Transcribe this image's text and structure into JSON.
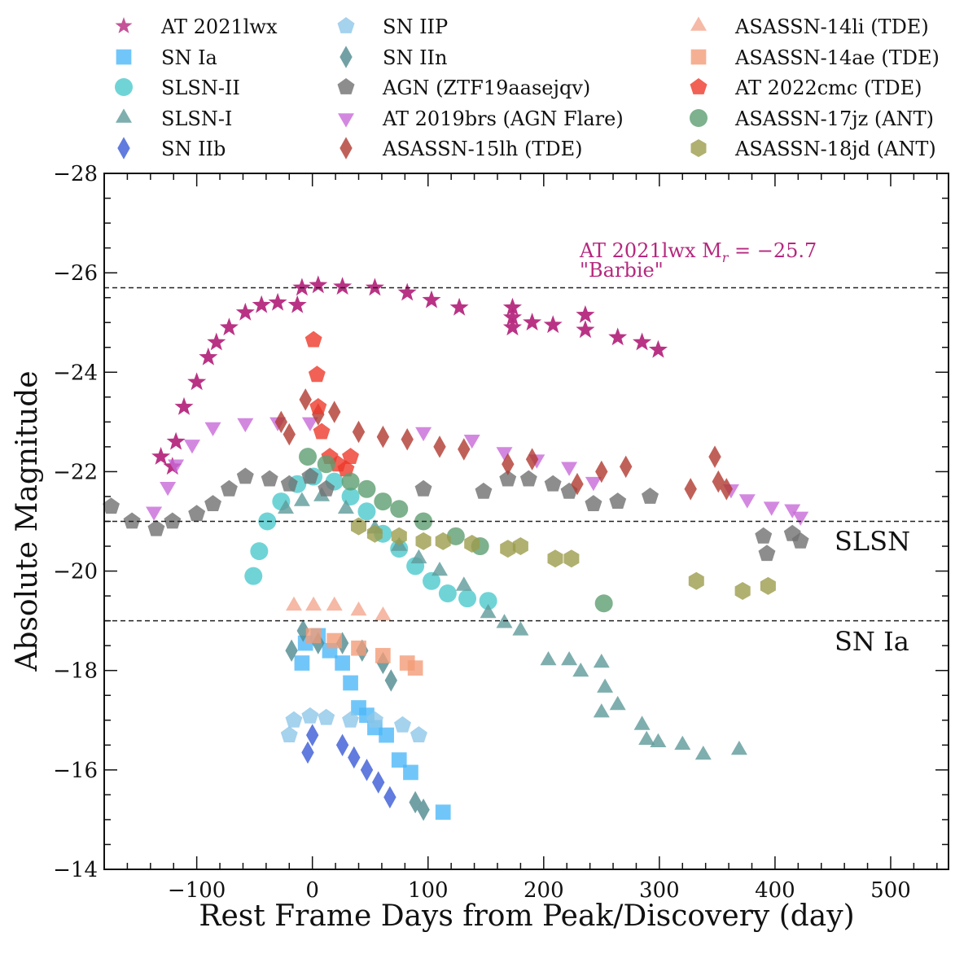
{
  "chart_data": {
    "type": "scatter",
    "title": "",
    "xlabel": "Rest Frame Days from Peak/Discovery (day)",
    "ylabel": "Absolute Magnitude",
    "xlim": [
      -180,
      550
    ],
    "ylim": [
      -28,
      -14
    ],
    "y_inverted": true,
    "x_ticks": [
      -100,
      0,
      100,
      200,
      300,
      400,
      500
    ],
    "x_tick_labels": [
      "−100",
      "0",
      "100",
      "200",
      "300",
      "400",
      "500"
    ],
    "y_ticks": [
      -28,
      -26,
      -24,
      -22,
      -20,
      -18,
      -16,
      -14
    ],
    "y_tick_labels": [
      "−28",
      "−26",
      "−24",
      "−22",
      "−20",
      "−18",
      "−16",
      "−14"
    ],
    "grid": false,
    "legend_placement": "top-outside",
    "reference_lines": [
      {
        "y": -25.7,
        "label": ""
      },
      {
        "y": -21,
        "label": "SLSN"
      },
      {
        "y": -19,
        "label": "SN Ia"
      }
    ],
    "annotation": {
      "line1": "AT 2021lwx M",
      "sub": "r",
      "line1b": " = −25.7",
      "line2": "\"Barbie\"",
      "color": "#b5287e"
    },
    "series": [
      {
        "name": "AT 2021lwx",
        "marker": "star",
        "color": "#b5287e",
        "x": [
          -131,
          -121,
          -118,
          -111,
          -100,
          -90,
          -83,
          -72,
          -58,
          -44,
          -30,
          -13,
          -9,
          5,
          26,
          54,
          82,
          103,
          127,
          173,
          173,
          173,
          190,
          208,
          236,
          236,
          264,
          285,
          299
        ],
        "y": [
          -22.3,
          -22.1,
          -22.6,
          -23.3,
          -23.8,
          -24.3,
          -24.6,
          -24.9,
          -25.2,
          -25.35,
          -25.4,
          -25.35,
          -25.7,
          -25.75,
          -25.72,
          -25.7,
          -25.6,
          -25.45,
          -25.3,
          -25.3,
          -25.1,
          -24.9,
          -25.0,
          -24.95,
          -24.85,
          -25.15,
          -24.7,
          -24.6,
          -24.45
        ]
      },
      {
        "name": "SN Ia",
        "marker": "square",
        "color": "#4db8f8",
        "x": [
          -9,
          -6,
          5,
          15,
          26,
          33,
          40,
          47,
          54,
          64,
          75,
          85,
          113
        ],
        "y": [
          -18.15,
          -18.55,
          -18.7,
          -18.4,
          -18.15,
          -17.75,
          -17.25,
          -17.1,
          -16.85,
          -16.7,
          -16.2,
          -15.95,
          -15.15
        ]
      },
      {
        "name": "SLSN-II",
        "marker": "circle",
        "color": "#4cc9cc",
        "x": [
          -51,
          -46,
          -39,
          -27,
          -13,
          1,
          19,
          33,
          47,
          61,
          75,
          89,
          103,
          117,
          134,
          152
        ],
        "y": [
          -19.9,
          -20.4,
          -21.0,
          -21.4,
          -21.75,
          -21.9,
          -21.8,
          -21.5,
          -21.2,
          -20.75,
          -20.45,
          -20.1,
          -19.8,
          -19.55,
          -19.45,
          -19.4
        ]
      },
      {
        "name": "SLSN-I",
        "marker": "triangle",
        "color": "#5f9a9a",
        "x": [
          -23,
          -9,
          8,
          29,
          54,
          75,
          92,
          110,
          131,
          152,
          166,
          180,
          204,
          222,
          232,
          250,
          253,
          250,
          264,
          285,
          289,
          299,
          320,
          338,
          369
        ],
        "y": [
          -21.25,
          -21.4,
          -21.5,
          -21.25,
          -20.85,
          -20.5,
          -20.25,
          -20.0,
          -19.7,
          -19.15,
          -18.95,
          -18.8,
          -18.2,
          -18.2,
          -17.97,
          -18.15,
          -17.65,
          -17.15,
          -17.3,
          -16.9,
          -16.6,
          -16.55,
          -16.5,
          -16.3,
          -16.4
        ]
      },
      {
        "name": "SN IIb",
        "marker": "diamond",
        "color": "#3a5ad6",
        "x": [
          -4,
          0,
          26,
          36,
          47,
          57,
          67
        ],
        "y": [
          -16.35,
          -16.7,
          -16.5,
          -16.25,
          -16.0,
          -15.75,
          -15.45
        ]
      },
      {
        "name": "SN IIP",
        "marker": "pentagon",
        "color": "#8ec7e8",
        "x": [
          -20,
          -16,
          -2,
          12,
          33,
          54,
          78,
          92
        ],
        "y": [
          -16.7,
          -17.0,
          -17.08,
          -17.05,
          -17.0,
          -17.0,
          -16.9,
          -16.7
        ]
      },
      {
        "name": "SN IIn",
        "marker": "diamond",
        "color": "#4f8a8e",
        "x": [
          -18,
          -8,
          5,
          26,
          43,
          61,
          68,
          89,
          96
        ],
        "y": [
          -18.4,
          -18.8,
          -18.55,
          -18.55,
          -18.4,
          -18.15,
          -17.8,
          -15.35,
          -15.2
        ]
      },
      {
        "name": "AGN (ZTF19aasejqv)",
        "marker": "pentagon",
        "color": "#707070",
        "x": [
          -174,
          -156,
          -135,
          -121,
          -100,
          -86,
          -72,
          -58,
          -37,
          -20,
          -2,
          12,
          96,
          148,
          169,
          187,
          208,
          222,
          243,
          264,
          292,
          390,
          393,
          415,
          422
        ],
        "y": [
          -21.3,
          -21.0,
          -20.85,
          -21.0,
          -21.15,
          -21.35,
          -21.65,
          -21.9,
          -21.85,
          -21.75,
          -21.9,
          -21.65,
          -21.65,
          -21.6,
          -21.85,
          -21.85,
          -21.75,
          -21.6,
          -21.35,
          -21.4,
          -21.5,
          -20.7,
          -20.35,
          -20.75,
          -20.6
        ]
      },
      {
        "name": "AT 2019brs (AGN Flare)",
        "marker": "triangle-down",
        "color": "#c86ad8",
        "x": [
          -137,
          -125,
          -118,
          -104,
          -86,
          -58,
          -30,
          -2,
          96,
          138,
          166,
          194,
          222,
          243,
          362,
          376,
          397,
          415,
          422
        ],
        "y": [
          -21.2,
          -21.7,
          -22.15,
          -22.55,
          -22.9,
          -22.98,
          -23.0,
          -23.0,
          -22.8,
          -22.65,
          -22.4,
          -22.25,
          -22.1,
          -21.8,
          -21.65,
          -21.45,
          -21.3,
          -21.25,
          -21.1
        ]
      },
      {
        "name": "ASASSN-15lh (TDE)",
        "marker": "diamond",
        "color": "#b03a30",
        "x": [
          -27,
          -20,
          -6,
          5,
          19,
          40,
          61,
          82,
          110,
          131,
          169,
          190,
          229,
          250,
          271,
          327,
          348,
          351,
          358
        ],
        "y": [
          -23.0,
          -22.75,
          -23.45,
          -23.15,
          -23.2,
          -22.8,
          -22.7,
          -22.65,
          -22.5,
          -22.45,
          -22.15,
          -22.25,
          -21.75,
          -22.0,
          -22.1,
          -21.65,
          -22.3,
          -21.8,
          -21.65
        ]
      },
      {
        "name": "ASASSN-14li (TDE)",
        "marker": "triangle",
        "color": "#f2a890",
        "x": [
          -16,
          1,
          19,
          40,
          61
        ],
        "y": [
          -19.3,
          -19.3,
          -19.3,
          -19.2,
          -19.1
        ]
      },
      {
        "name": "ASASSN-14ae (TDE)",
        "marker": "square",
        "color": "#f29c78",
        "x": [
          1,
          19,
          40,
          61,
          82,
          89
        ],
        "y": [
          -18.7,
          -18.6,
          -18.45,
          -18.3,
          -18.15,
          -18.05
        ]
      },
      {
        "name": "AT 2022cmc (TDE)",
        "marker": "pentagon",
        "color": "#ee3a2a",
        "x": [
          1,
          4,
          5,
          8,
          15,
          22,
          29,
          33
        ],
        "y": [
          -24.65,
          -23.95,
          -23.3,
          -22.8,
          -22.3,
          -22.15,
          -22.05,
          -22.3
        ]
      },
      {
        "name": "ASASSN-17jz (ANT)",
        "marker": "circle",
        "color": "#5e9e70",
        "x": [
          -4,
          12,
          33,
          47,
          61,
          75,
          96,
          124,
          145,
          252
        ],
        "y": [
          -22.3,
          -22.15,
          -21.8,
          -21.65,
          -21.4,
          -21.25,
          -21.0,
          -20.7,
          -20.5,
          -19.35
        ]
      },
      {
        "name": "ASASSN-18jd (ANT)",
        "marker": "hexagon",
        "color": "#9c9c4c",
        "x": [
          40,
          54,
          75,
          96,
          113,
          138,
          169,
          180,
          210,
          224,
          332,
          372,
          394
        ],
        "y": [
          -20.9,
          -20.75,
          -20.7,
          -20.6,
          -20.6,
          -20.55,
          -20.45,
          -20.5,
          -20.25,
          -20.25,
          -19.8,
          -19.6,
          -19.7
        ]
      }
    ]
  }
}
